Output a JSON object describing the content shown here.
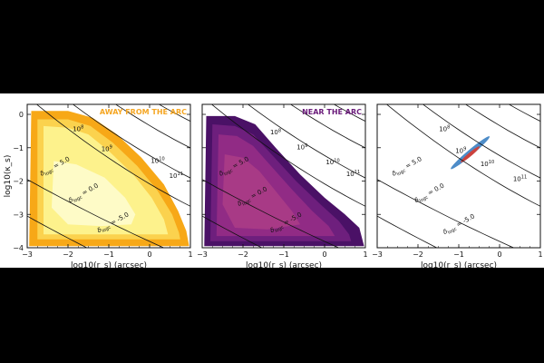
{
  "chart_data": [
    {
      "type": "contour",
      "title": "AWAY FROM THE ARC",
      "title_color": "#f5a623",
      "xlabel": "log10(r_s) (arcsec)",
      "ylabel": "log10(κ_s)",
      "xlim": [
        -3,
        1
      ],
      "ylim": [
        -4,
        0.3
      ],
      "xticks": [
        -3,
        -2,
        -1,
        0,
        1
      ],
      "yticks": [
        0,
        -1,
        -2,
        -3,
        -4
      ],
      "fill_colors": [
        "#f7a817",
        "#fbd24e",
        "#fdf28c",
        "#fefbc7"
      ],
      "regions": [
        [
          [
            -2.9,
            0.1
          ],
          [
            -2.0,
            0.1
          ],
          [
            -1.4,
            -0.1
          ],
          [
            -0.8,
            -0.6
          ],
          [
            -0.2,
            -1.3
          ],
          [
            0.35,
            -2.1
          ],
          [
            0.7,
            -2.9
          ],
          [
            0.9,
            -3.5
          ],
          [
            0.97,
            -3.95
          ],
          [
            -2.95,
            -3.95
          ]
        ],
        [
          [
            -2.75,
            -0.15
          ],
          [
            -2.0,
            -0.15
          ],
          [
            -1.45,
            -0.35
          ],
          [
            -0.9,
            -0.85
          ],
          [
            -0.3,
            -1.55
          ],
          [
            0.2,
            -2.3
          ],
          [
            0.55,
            -3.0
          ],
          [
            0.72,
            -3.55
          ],
          [
            0.75,
            -3.75
          ],
          [
            -2.75,
            -3.75
          ]
        ],
        [
          [
            -2.6,
            -0.35
          ],
          [
            -2.0,
            -0.4
          ],
          [
            -1.5,
            -0.6
          ],
          [
            -1.0,
            -1.1
          ],
          [
            -0.4,
            -1.8
          ],
          [
            0.05,
            -2.5
          ],
          [
            0.35,
            -3.15
          ],
          [
            0.45,
            -3.6
          ],
          [
            -2.6,
            -3.6
          ]
        ],
        [
          [
            -2.35,
            -1.4
          ],
          [
            -1.8,
            -1.5
          ],
          [
            -1.1,
            -1.9
          ],
          [
            -0.6,
            -2.5
          ],
          [
            -0.35,
            -3.0
          ],
          [
            -0.45,
            -3.3
          ],
          [
            -1.2,
            -3.35
          ],
          [
            -2.0,
            -3.3
          ],
          [
            -2.4,
            -2.8
          ]
        ]
      ],
      "mass_labels": [
        {
          "text": "10^8",
          "x": -1.75,
          "y": -0.5
        },
        {
          "text": "10^9",
          "x": -1.05,
          "y": -1.1
        },
        {
          "text": "10^10",
          "x": 0.2,
          "y": -1.45
        },
        {
          "text": "10^11",
          "x": 0.65,
          "y": -1.9
        }
      ],
      "delta_labels": [
        {
          "value": "5.0",
          "x": -2.65,
          "y": -1.85,
          "angle": -29
        },
        {
          "value": "0.0",
          "x": -1.95,
          "y": -2.65,
          "angle": -29
        },
        {
          "value": "-5.0",
          "x": -1.25,
          "y": -3.55,
          "angle": -29
        }
      ]
    },
    {
      "type": "contour",
      "title": "NEAR THE ARC",
      "title_color": "#6a1b7a",
      "xlabel": "log10(r_s) (arcsec)",
      "xlim": [
        -3,
        1
      ],
      "ylim": [
        -4,
        0.3
      ],
      "xticks": [
        -3,
        -2,
        -1,
        0,
        1
      ],
      "fill_colors": [
        "#4a1166",
        "#6e1f7d",
        "#912b85",
        "#a83a86"
      ],
      "regions": [
        [
          [
            -2.9,
            -0.05
          ],
          [
            -2.2,
            -0.05
          ],
          [
            -1.7,
            -0.3
          ],
          [
            -1.2,
            -1.0
          ],
          [
            -0.6,
            -1.8
          ],
          [
            0.0,
            -2.5
          ],
          [
            0.5,
            -3.0
          ],
          [
            0.85,
            -3.4
          ],
          [
            0.97,
            -3.95
          ],
          [
            -2.95,
            -3.95
          ]
        ],
        [
          [
            -2.75,
            -0.3
          ],
          [
            -2.2,
            -0.35
          ],
          [
            -1.75,
            -0.6
          ],
          [
            -1.3,
            -1.2
          ],
          [
            -0.7,
            -2.0
          ],
          [
            -0.1,
            -2.7
          ],
          [
            0.35,
            -3.2
          ],
          [
            0.6,
            -3.6
          ],
          [
            0.65,
            -3.8
          ],
          [
            -2.8,
            -3.8
          ]
        ],
        [
          [
            -2.6,
            -0.6
          ],
          [
            -2.15,
            -0.65
          ],
          [
            -1.75,
            -0.95
          ],
          [
            -1.35,
            -1.5
          ],
          [
            -0.8,
            -2.25
          ],
          [
            -0.3,
            -2.9
          ],
          [
            0.1,
            -3.35
          ],
          [
            0.25,
            -3.65
          ],
          [
            -2.65,
            -3.65
          ]
        ],
        [
          [
            -2.45,
            -1.2
          ],
          [
            -2.0,
            -1.3
          ],
          [
            -1.6,
            -1.7
          ],
          [
            -1.2,
            -2.3
          ],
          [
            -0.8,
            -2.9
          ],
          [
            -0.6,
            -3.3
          ],
          [
            -1.4,
            -3.45
          ],
          [
            -2.2,
            -3.4
          ],
          [
            -2.5,
            -2.7
          ]
        ]
      ],
      "mass_labels": [
        {
          "text": "10^8",
          "x": -1.2,
          "y": -0.6
        },
        {
          "text": "10^9",
          "x": -0.55,
          "y": -1.05
        },
        {
          "text": "10^10",
          "x": 0.2,
          "y": -1.5
        },
        {
          "text": "10^11",
          "x": 0.7,
          "y": -1.85
        }
      ],
      "delta_labels": [
        {
          "value": "5.0",
          "x": -2.55,
          "y": -1.85,
          "angle": -29
        },
        {
          "value": "0.0",
          "x": -2.1,
          "y": -2.75,
          "angle": -29
        },
        {
          "value": "-5.0",
          "x": -1.3,
          "y": -3.55,
          "angle": -29
        }
      ]
    },
    {
      "type": "contour",
      "title": "",
      "xlabel": "log10(r_s) (arcsec)",
      "xlim": [
        -3,
        1
      ],
      "ylim": [
        -4,
        0.3
      ],
      "xticks": [
        -3,
        -2,
        -1,
        0,
        1
      ],
      "fill_colors": [
        "#3a7fc2",
        "#d93a2f"
      ],
      "ellipses": [
        {
          "cx": -0.72,
          "cy": -1.15,
          "rx": 0.62,
          "ry": 0.07,
          "angle": -40,
          "color": "#3a7fc2"
        },
        {
          "cx": -0.72,
          "cy": -1.2,
          "rx": 0.3,
          "ry": 0.045,
          "angle": -40,
          "color": "#d93a2f"
        }
      ],
      "mass_labels": [
        {
          "text": "10^8",
          "x": -1.35,
          "y": -0.5
        },
        {
          "text": "10^9",
          "x": -0.95,
          "y": -1.15
        },
        {
          "text": "10^10",
          "x": -0.3,
          "y": -1.55
        },
        {
          "text": "10^11",
          "x": 0.5,
          "y": -2.0
        }
      ],
      "delta_labels": [
        {
          "value": "5.0",
          "x": -2.6,
          "y": -1.85,
          "angle": -29
        },
        {
          "value": "0.0",
          "x": -2.05,
          "y": -2.65,
          "angle": -29
        },
        {
          "value": "-5.0",
          "x": -1.35,
          "y": -3.6,
          "angle": -29
        }
      ]
    }
  ],
  "mass_lines": {
    "slope": -3.1,
    "base": [
      0.0,
      0.85,
      1.75,
      2.55
    ]
  },
  "delta_lines": {
    "slope": -0.68,
    "base": [
      -1.95,
      -3.05,
      -4.3
    ]
  }
}
